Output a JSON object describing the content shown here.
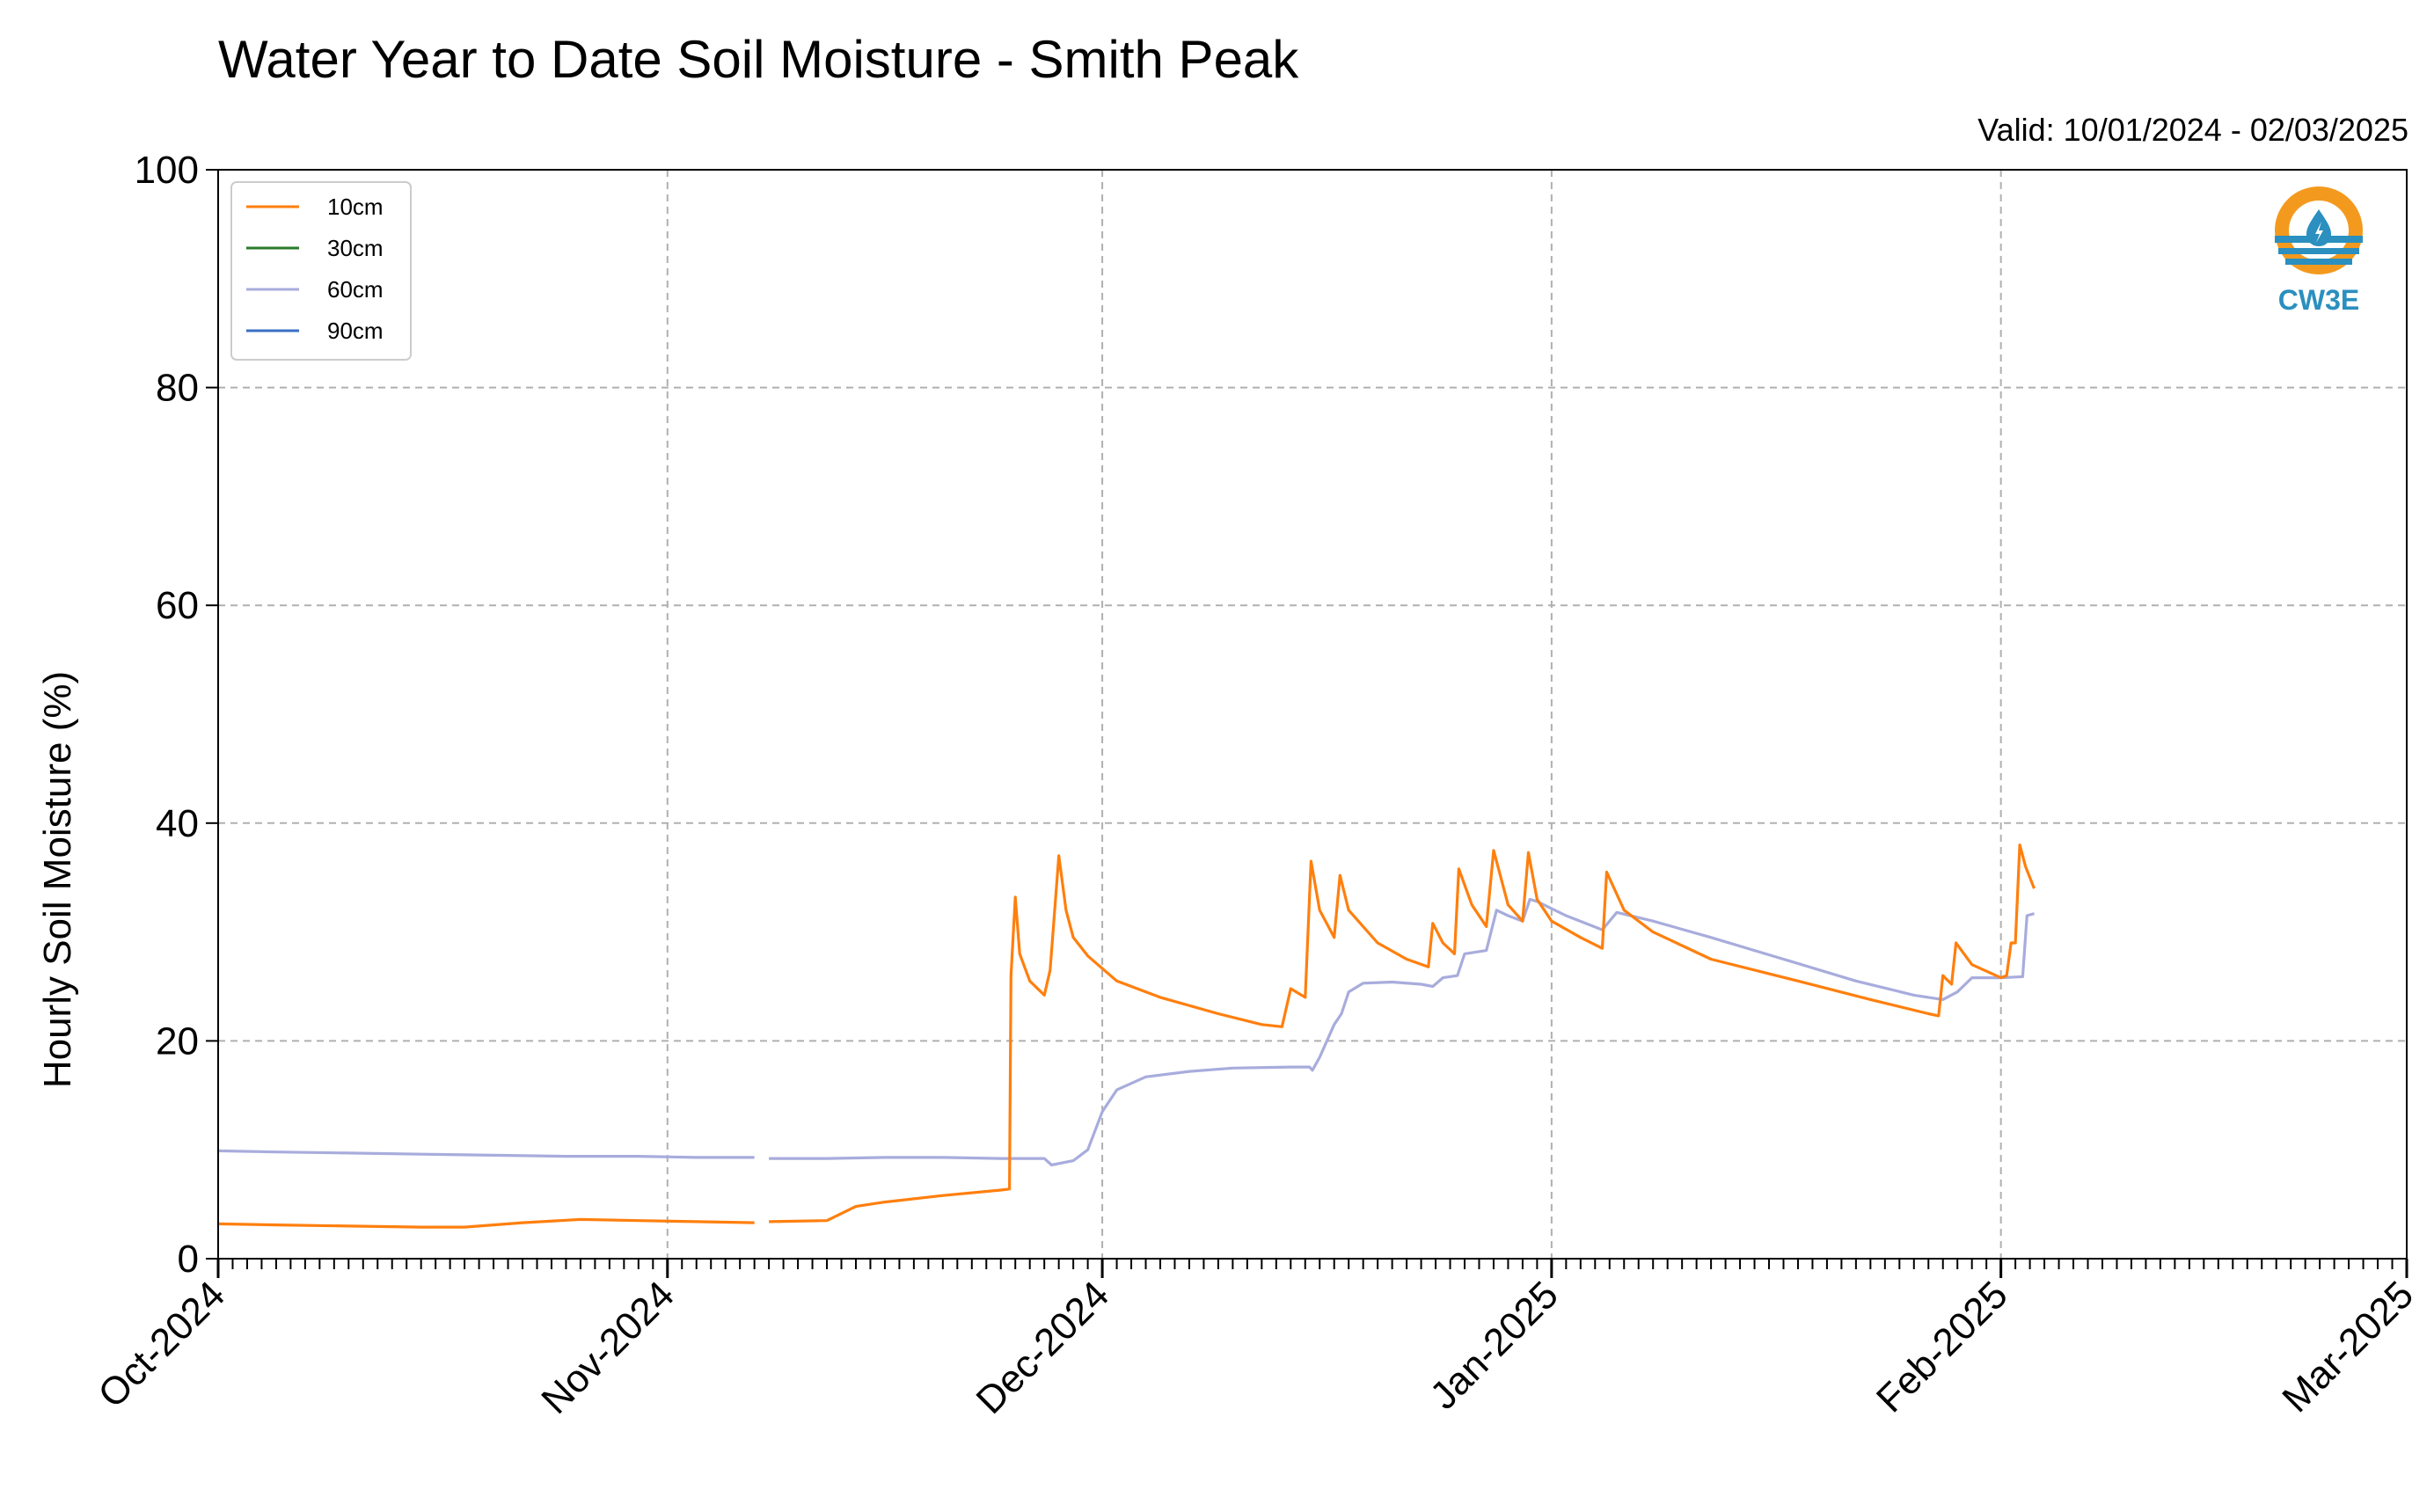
{
  "chart_data": {
    "type": "line",
    "title": "Water Year to Date Soil Moisture - Smith Peak",
    "subtitle": "Valid: 10/01/2024 - 02/03/2025",
    "ylabel": "Hourly Soil Moisture (%)",
    "xlabel": "",
    "x_start": "2024-10-01",
    "x_end": "2025-03-01",
    "ylim": [
      0,
      100
    ],
    "yticks": [
      "0",
      "20",
      "40",
      "60",
      "80",
      "100"
    ],
    "xticks": [
      {
        "date": "2024-10-01",
        "label": "Oct-2024"
      },
      {
        "date": "2024-11-01",
        "label": "Nov-2024"
      },
      {
        "date": "2024-12-01",
        "label": "Dec-2024"
      },
      {
        "date": "2025-01-01",
        "label": "Jan-2025"
      },
      {
        "date": "2025-02-01",
        "label": "Feb-2025"
      },
      {
        "date": "2025-03-01",
        "label": "Mar-2025"
      }
    ],
    "grid": true,
    "legend_position": "top-left",
    "series": [
      {
        "name": "10cm",
        "color": "#ff7f0e",
        "points": [
          [
            "2024-10-01",
            3.2
          ],
          [
            "2024-10-05",
            3.1
          ],
          [
            "2024-10-10",
            3.0
          ],
          [
            "2024-10-15",
            2.9
          ],
          [
            "2024-10-18",
            2.9
          ],
          [
            "2024-10-22",
            3.3
          ],
          [
            "2024-10-26",
            3.6
          ],
          [
            "2024-10-30",
            3.5
          ],
          [
            "2024-11-03",
            3.4
          ],
          [
            "2024-11-07",
            3.3
          ],
          null,
          [
            "2024-11-08",
            3.4
          ],
          [
            "2024-11-12",
            3.5
          ],
          [
            "2024-11-14",
            4.8
          ],
          [
            "2024-11-16",
            5.2
          ],
          [
            "2024-11-20",
            5.8
          ],
          [
            "2024-11-24",
            6.3
          ],
          [
            "2024-11-24.6",
            6.4
          ],
          [
            "2024-11-24.7",
            26.0
          ],
          [
            "2024-11-25",
            33.2
          ],
          [
            "2024-11-25.3",
            28.0
          ],
          [
            "2024-11-26",
            25.5
          ],
          [
            "2024-11-27",
            24.2
          ],
          [
            "2024-11-27.4",
            26.5
          ],
          [
            "2024-11-28",
            37.0
          ],
          [
            "2024-11-28.5",
            32.0
          ],
          [
            "2024-11-29",
            29.5
          ],
          [
            "2024-11-30",
            27.8
          ],
          [
            "2024-12-02",
            25.5
          ],
          [
            "2024-12-05",
            24.0
          ],
          [
            "2024-12-09",
            22.5
          ],
          [
            "2024-12-12",
            21.5
          ],
          [
            "2024-12-13.4",
            21.3
          ],
          [
            "2024-12-14",
            24.8
          ],
          [
            "2024-12-15",
            24.0
          ],
          [
            "2024-12-15.4",
            36.5
          ],
          [
            "2024-12-16",
            32.0
          ],
          [
            "2024-12-17",
            29.5
          ],
          [
            "2024-12-17.4",
            35.2
          ],
          [
            "2024-12-18",
            32.0
          ],
          [
            "2024-12-20",
            29.0
          ],
          [
            "2024-12-22",
            27.5
          ],
          [
            "2024-12-23.5",
            26.8
          ],
          [
            "2024-12-23.8",
            30.8
          ],
          [
            "2024-12-24.5",
            29.0
          ],
          [
            "2024-12-25.3",
            28.0
          ],
          [
            "2024-12-25.6",
            35.8
          ],
          [
            "2024-12-26.5",
            32.5
          ],
          [
            "2024-12-27.5",
            30.5
          ],
          [
            "2024-12-28",
            37.5
          ],
          [
            "2024-12-29",
            32.5
          ],
          [
            "2024-12-30",
            31.0
          ],
          [
            "2024-12-30.4",
            37.3
          ],
          [
            "2024-12-31",
            33.0
          ],
          [
            "2025-01-01",
            31.0
          ],
          [
            "2025-01-03",
            29.5
          ],
          [
            "2025-01-04.5",
            28.5
          ],
          [
            "2025-01-04.8",
            35.5
          ],
          [
            "2025-01-06",
            32.0
          ],
          [
            "2025-01-08",
            30.0
          ],
          [
            "2025-01-12",
            27.5
          ],
          [
            "2025-01-18",
            25.5
          ],
          [
            "2025-01-23",
            23.8
          ],
          [
            "2025-01-27",
            22.5
          ],
          [
            "2025-01-27.7",
            22.3
          ],
          [
            "2025-01-28",
            26.0
          ],
          [
            "2025-01-28.6",
            25.2
          ],
          [
            "2025-01-28.9",
            29.0
          ],
          [
            "2025-01-30",
            27.0
          ],
          [
            "2025-02-01",
            25.8
          ],
          [
            "2025-02-01.4",
            26.0
          ],
          [
            "2025-02-01.7",
            29.0
          ],
          [
            "2025-02-02",
            29.0
          ],
          [
            "2025-02-02.3",
            38.0
          ],
          [
            "2025-02-02.7",
            36.0
          ],
          [
            "2025-02-03",
            35.0
          ],
          [
            "2025-02-03.3",
            34.0
          ]
        ]
      },
      {
        "name": "30cm",
        "color": "#2a7a2a",
        "points": []
      },
      {
        "name": "60cm",
        "color": "#a8acdc",
        "points": [
          [
            "2024-10-01",
            9.9
          ],
          [
            "2024-10-05",
            9.8
          ],
          [
            "2024-10-10",
            9.7
          ],
          [
            "2024-10-15",
            9.6
          ],
          [
            "2024-10-20",
            9.5
          ],
          [
            "2024-10-25",
            9.4
          ],
          [
            "2024-10-30",
            9.4
          ],
          [
            "2024-11-03",
            9.3
          ],
          [
            "2024-11-07",
            9.3
          ],
          null,
          [
            "2024-11-08",
            9.2
          ],
          [
            "2024-11-12",
            9.2
          ],
          [
            "2024-11-16",
            9.3
          ],
          [
            "2024-11-20",
            9.3
          ],
          [
            "2024-11-24",
            9.2
          ],
          [
            "2024-11-27",
            9.2
          ],
          [
            "2024-11-27.5",
            8.6
          ],
          [
            "2024-11-29",
            9.0
          ],
          [
            "2024-11-30",
            10.0
          ],
          [
            "2024-12-01",
            13.5
          ],
          [
            "2024-12-02",
            15.5
          ],
          [
            "2024-12-04",
            16.7
          ],
          [
            "2024-12-07",
            17.2
          ],
          [
            "2024-12-10",
            17.5
          ],
          [
            "2024-12-14",
            17.6
          ],
          [
            "2024-12-15.3",
            17.6
          ],
          [
            "2024-12-15.5",
            17.3
          ],
          [
            "2024-12-16",
            18.5
          ],
          [
            "2024-12-17",
            21.5
          ],
          [
            "2024-12-17.5",
            22.5
          ],
          [
            "2024-12-18",
            24.5
          ],
          [
            "2024-12-19",
            25.3
          ],
          [
            "2024-12-21",
            25.4
          ],
          [
            "2024-12-23",
            25.2
          ],
          [
            "2024-12-23.8",
            25.0
          ],
          [
            "2024-12-24.5",
            25.8
          ],
          [
            "2024-12-25.5",
            26.0
          ],
          [
            "2024-12-26",
            28.0
          ],
          [
            "2024-12-27.5",
            28.3
          ],
          [
            "2024-12-28.2",
            32.0
          ],
          [
            "2024-12-29",
            31.5
          ],
          [
            "2024-12-30",
            31.0
          ],
          [
            "2024-12-30.5",
            33.0
          ],
          [
            "2024-12-31",
            32.8
          ],
          [
            "2025-01-02",
            31.5
          ],
          [
            "2025-01-04.5",
            30.2
          ],
          [
            "2025-01-05.5",
            31.8
          ],
          [
            "2025-01-08",
            31.0
          ],
          [
            "2025-01-12",
            29.5
          ],
          [
            "2025-01-17",
            27.5
          ],
          [
            "2025-01-22",
            25.5
          ],
          [
            "2025-01-26",
            24.2
          ],
          [
            "2025-01-28",
            23.8
          ],
          [
            "2025-01-29",
            24.5
          ],
          [
            "2025-01-30",
            25.8
          ],
          [
            "2025-02-01",
            25.8
          ],
          [
            "2025-02-02.5",
            25.9
          ],
          [
            "2025-02-02.8",
            31.5
          ],
          [
            "2025-02-03.3",
            31.7
          ]
        ]
      },
      {
        "name": "90cm",
        "color": "#3a6fc4",
        "points": []
      }
    ]
  },
  "logo": {
    "text": "CW3E",
    "name": "cw3e-logo",
    "colors": {
      "orange": "#f39a1e",
      "blue": "#2b8fbf"
    }
  }
}
